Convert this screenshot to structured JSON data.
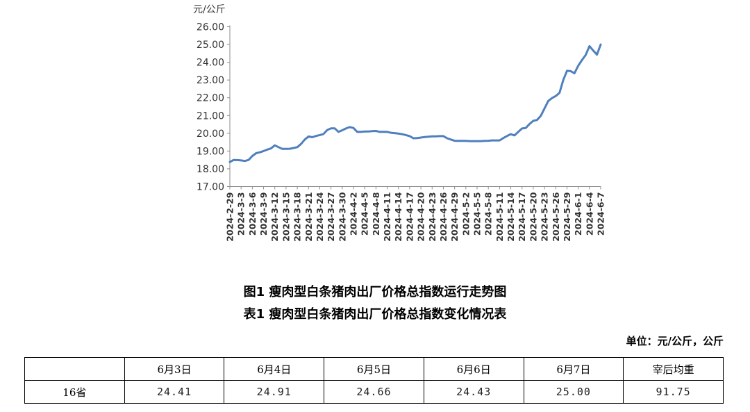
{
  "chart_data": {
    "type": "line",
    "ylabel": "元/公斤",
    "ylim": [
      17.0,
      26.0
    ],
    "yticks": [
      "17.00",
      "18.00",
      "19.00",
      "20.00",
      "21.00",
      "22.00",
      "23.00",
      "24.00",
      "25.00",
      "26.00"
    ],
    "x_ticks": [
      "2024-2-29",
      "2024-3-3",
      "2024-3-6",
      "2024-3-9",
      "2024-3-12",
      "2024-3-15",
      "2024-3-18",
      "2024-3-21",
      "2024-3-24",
      "2024-3-27",
      "2024-3-30",
      "2024-4-2",
      "2024-4-5",
      "2024-4-8",
      "2024-4-11",
      "2024-4-14",
      "2024-4-17",
      "2024-4-20",
      "2024-4-23",
      "2024-4-26",
      "2024-4-29",
      "2024-5-2",
      "2024-5-5",
      "2024-5-8",
      "2024-5-11",
      "2024-5-14",
      "2024-5-17",
      "2024-5-20",
      "2024-5-23",
      "2024-5-26",
      "2024-5-29",
      "2024-6-1",
      "2024-6-4",
      "2024-6-7"
    ],
    "series": [
      {
        "color": "#4f7fbd",
        "points": [
          [
            "2024-2-29",
            18.38
          ],
          [
            "2024-3-1",
            18.5
          ],
          [
            "2024-3-2",
            18.49
          ],
          [
            "2024-3-3",
            18.47
          ],
          [
            "2024-3-4",
            18.44
          ],
          [
            "2024-3-5",
            18.5
          ],
          [
            "2024-3-6",
            18.72
          ],
          [
            "2024-3-7",
            18.88
          ],
          [
            "2024-3-8",
            18.93
          ],
          [
            "2024-3-9",
            19.0
          ],
          [
            "2024-3-10",
            19.08
          ],
          [
            "2024-3-11",
            19.15
          ],
          [
            "2024-3-12",
            19.32
          ],
          [
            "2024-3-13",
            19.22
          ],
          [
            "2024-3-14",
            19.12
          ],
          [
            "2024-3-15",
            19.12
          ],
          [
            "2024-3-16",
            19.13
          ],
          [
            "2024-3-17",
            19.17
          ],
          [
            "2024-3-18",
            19.22
          ],
          [
            "2024-3-19",
            19.4
          ],
          [
            "2024-3-20",
            19.65
          ],
          [
            "2024-3-21",
            19.82
          ],
          [
            "2024-3-22",
            19.78
          ],
          [
            "2024-3-23",
            19.85
          ],
          [
            "2024-3-24",
            19.9
          ],
          [
            "2024-3-25",
            19.96
          ],
          [
            "2024-3-26",
            20.18
          ],
          [
            "2024-3-27",
            20.28
          ],
          [
            "2024-3-28",
            20.28
          ],
          [
            "2024-3-29",
            20.08
          ],
          [
            "2024-3-30",
            20.17
          ],
          [
            "2024-3-31",
            20.27
          ],
          [
            "2024-4-1",
            20.35
          ],
          [
            "2024-4-2",
            20.3
          ],
          [
            "2024-4-3",
            20.08
          ],
          [
            "2024-4-4",
            20.08
          ],
          [
            "2024-4-5",
            20.1
          ],
          [
            "2024-4-6",
            20.1
          ],
          [
            "2024-4-7",
            20.12
          ],
          [
            "2024-4-8",
            20.13
          ],
          [
            "2024-4-9",
            20.08
          ],
          [
            "2024-4-10",
            20.08
          ],
          [
            "2024-4-11",
            20.08
          ],
          [
            "2024-4-12",
            20.03
          ],
          [
            "2024-4-13",
            20.01
          ],
          [
            "2024-4-14",
            19.98
          ],
          [
            "2024-4-15",
            19.95
          ],
          [
            "2024-4-16",
            19.9
          ],
          [
            "2024-4-17",
            19.84
          ],
          [
            "2024-4-18",
            19.72
          ],
          [
            "2024-4-19",
            19.73
          ],
          [
            "2024-4-20",
            19.76
          ],
          [
            "2024-4-21",
            19.79
          ],
          [
            "2024-4-22",
            19.81
          ],
          [
            "2024-4-23",
            19.83
          ],
          [
            "2024-4-24",
            19.83
          ],
          [
            "2024-4-25",
            19.84
          ],
          [
            "2024-4-26",
            19.84
          ],
          [
            "2024-4-27",
            19.72
          ],
          [
            "2024-4-28",
            19.65
          ],
          [
            "2024-4-29",
            19.58
          ],
          [
            "2024-4-30",
            19.57
          ],
          [
            "2024-5-1",
            19.57
          ],
          [
            "2024-5-2",
            19.57
          ],
          [
            "2024-5-3",
            19.56
          ],
          [
            "2024-5-4",
            19.56
          ],
          [
            "2024-5-5",
            19.56
          ],
          [
            "2024-5-6",
            19.56
          ],
          [
            "2024-5-7",
            19.57
          ],
          [
            "2024-5-8",
            19.58
          ],
          [
            "2024-5-9",
            19.6
          ],
          [
            "2024-5-10",
            19.6
          ],
          [
            "2024-5-11",
            19.6
          ],
          [
            "2024-5-12",
            19.73
          ],
          [
            "2024-5-13",
            19.85
          ],
          [
            "2024-5-14",
            19.95
          ],
          [
            "2024-5-15",
            19.88
          ],
          [
            "2024-5-16",
            20.08
          ],
          [
            "2024-5-17",
            20.27
          ],
          [
            "2024-5-18",
            20.3
          ],
          [
            "2024-5-19",
            20.52
          ],
          [
            "2024-5-20",
            20.7
          ],
          [
            "2024-5-21",
            20.75
          ],
          [
            "2024-5-22",
            20.98
          ],
          [
            "2024-5-23",
            21.4
          ],
          [
            "2024-5-24",
            21.82
          ],
          [
            "2024-5-25",
            21.98
          ],
          [
            "2024-5-26",
            22.1
          ],
          [
            "2024-5-27",
            22.28
          ],
          [
            "2024-5-28",
            23.0
          ],
          [
            "2024-5-29",
            23.52
          ],
          [
            "2024-5-30",
            23.5
          ],
          [
            "2024-5-31",
            23.38
          ],
          [
            "2024-6-1",
            23.8
          ],
          [
            "2024-6-2",
            24.12
          ],
          [
            "2024-6-3",
            24.41
          ],
          [
            "2024-6-4",
            24.91
          ],
          [
            "2024-6-5",
            24.66
          ],
          [
            "2024-6-6",
            24.43
          ],
          [
            "2024-6-7",
            25.0
          ]
        ]
      }
    ]
  },
  "captions": {
    "figure": "图1 瘦肉型白条猪肉出厂价格总指数运行走势图",
    "table": "表1 瘦肉型白条猪肉出厂价格总指数变化情况表"
  },
  "table": {
    "unit_note": "单位：元/公斤，公斤",
    "headers": [
      "",
      "6月3日",
      "6月4日",
      "6月5日",
      "6月6日",
      "6月7日",
      "宰后均重"
    ],
    "rows": [
      [
        "16省",
        "24.41",
        "24.91",
        "24.66",
        "24.43",
        "25.00",
        "91.75"
      ]
    ]
  }
}
